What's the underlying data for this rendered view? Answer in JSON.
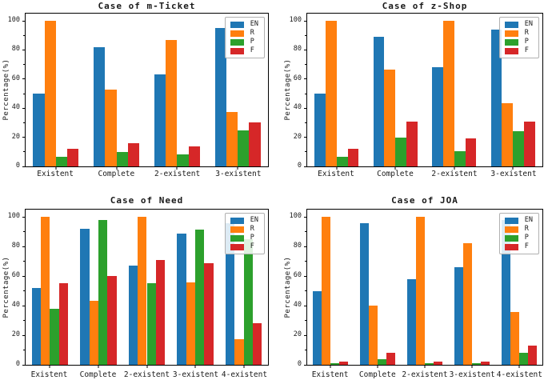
{
  "figure": {
    "background": "#ffffff",
    "spine_color": "#000000"
  },
  "palette": {
    "EN": "#1f77b4",
    "R": "#ff7f0e",
    "P": "#2ca02c",
    "F": "#d62728"
  },
  "legend_labels": [
    "EN",
    "R",
    "P",
    "F"
  ],
  "chart_data": [
    {
      "type": "bar",
      "title": "Case of m-Ticket",
      "ylabel": "Percentage(%)",
      "categories": [
        "Existent",
        "Complete",
        "2-existent",
        "3-existent"
      ],
      "series": [
        {
          "name": "EN",
          "color": "#1f77b4",
          "values": [
            50,
            82,
            63,
            95
          ]
        },
        {
          "name": "R",
          "color": "#ff7f0e",
          "values": [
            100,
            53,
            87,
            37.5
          ]
        },
        {
          "name": "P",
          "color": "#2ca02c",
          "values": [
            6.5,
            10,
            8,
            25
          ]
        },
        {
          "name": "F",
          "color": "#d62728",
          "values": [
            12,
            16,
            14,
            30
          ]
        }
      ],
      "ylim": [
        0,
        105
      ],
      "yticks": [
        0,
        20,
        40,
        60,
        80,
        100
      ],
      "minor_yticks": [
        10,
        30,
        50,
        70,
        90
      ],
      "legend_position": "upper right",
      "grid": false
    },
    {
      "type": "bar",
      "title": "Case of z-Shop",
      "ylabel": "Percentage(%)",
      "categories": [
        "Existent",
        "Complete",
        "2-existent",
        "3-existent"
      ],
      "series": [
        {
          "name": "EN",
          "color": "#1f77b4",
          "values": [
            50,
            89,
            68,
            94
          ]
        },
        {
          "name": "R",
          "color": "#ff7f0e",
          "values": [
            100,
            66.5,
            100,
            43.5
          ]
        },
        {
          "name": "P",
          "color": "#2ca02c",
          "values": [
            6.5,
            20,
            10.5,
            24
          ]
        },
        {
          "name": "F",
          "color": "#d62728",
          "values": [
            12,
            31,
            19,
            31
          ]
        }
      ],
      "ylim": [
        0,
        105
      ],
      "yticks": [
        0,
        20,
        40,
        60,
        80,
        100
      ],
      "minor_yticks": [
        10,
        30,
        50,
        70,
        90
      ],
      "legend_position": "upper right",
      "grid": false
    },
    {
      "type": "bar",
      "title": "Case of Need",
      "ylabel": "Percentage(%)",
      "categories": [
        "Existent",
        "Complete",
        "2-existent",
        "3-existent",
        "4-existent"
      ],
      "series": [
        {
          "name": "EN",
          "color": "#1f77b4",
          "values": [
            52,
            92,
            67,
            89,
            96
          ]
        },
        {
          "name": "R",
          "color": "#ff7f0e",
          "values": [
            100,
            43.5,
            100,
            55.5,
            17.5
          ]
        },
        {
          "name": "P",
          "color": "#2ca02c",
          "values": [
            38,
            98,
            55,
            91.5,
            85
          ]
        },
        {
          "name": "F",
          "color": "#d62728",
          "values": [
            55,
            60,
            71,
            69,
            28
          ]
        }
      ],
      "ylim": [
        0,
        105
      ],
      "yticks": [
        0,
        20,
        40,
        60,
        80,
        100
      ],
      "minor_yticks": [
        10,
        30,
        50,
        70,
        90
      ],
      "legend_position": "upper right",
      "grid": false
    },
    {
      "type": "bar",
      "title": "Case of JOA",
      "ylabel": "Percentage(%)",
      "categories": [
        "Existent",
        "Complete",
        "2-existent",
        "3-existent",
        "4-existent"
      ],
      "series": [
        {
          "name": "EN",
          "color": "#1f77b4",
          "values": [
            50,
            96,
            58,
            66,
            98
          ]
        },
        {
          "name": "R",
          "color": "#ff7f0e",
          "values": [
            100,
            40,
            100,
            82.5,
            36
          ]
        },
        {
          "name": "P",
          "color": "#2ca02c",
          "values": [
            1,
            4,
            1,
            1,
            8
          ]
        },
        {
          "name": "F",
          "color": "#d62728",
          "values": [
            2,
            8,
            2,
            2,
            13
          ]
        }
      ],
      "ylim": [
        0,
        105
      ],
      "yticks": [
        0,
        20,
        40,
        60,
        80,
        100
      ],
      "minor_yticks": [
        10,
        30,
        50,
        70,
        90
      ],
      "legend_position": "upper right",
      "grid": false
    }
  ]
}
